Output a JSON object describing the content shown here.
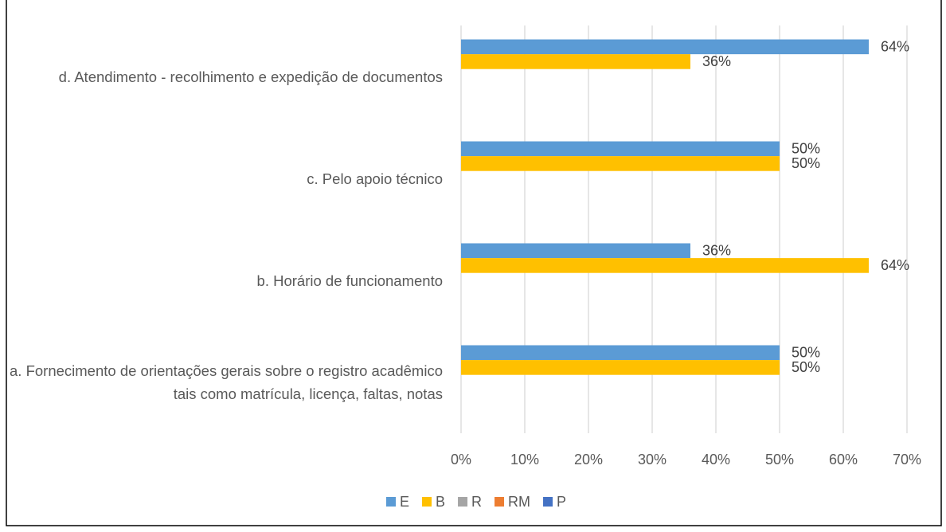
{
  "chart_data": {
    "type": "bar",
    "orientation": "horizontal",
    "categories": [
      "a. Fornecimento de orientações gerais sobre o registro acadêmico tais como matrícula, licença, faltas, notas",
      "b. Horário de funcionamento",
      "c. Pelo apoio técnico",
      "d. Atendimento - recolhimento e expedição de documentos"
    ],
    "series": [
      {
        "name": "E",
        "color": "#5b9bd5",
        "values": [
          50,
          36,
          50,
          64
        ],
        "value_labels": [
          "50%",
          "36%",
          "50%",
          "64%"
        ]
      },
      {
        "name": "B",
        "color": "#ffc000",
        "values": [
          50,
          64,
          50,
          36
        ],
        "value_labels": [
          "50%",
          "64%",
          "50%",
          "36%"
        ]
      },
      {
        "name": "R",
        "color": "#a5a5a5",
        "values": [
          null,
          null,
          null,
          null
        ]
      },
      {
        "name": "RM",
        "color": "#ed7d31",
        "values": [
          null,
          null,
          null,
          null
        ]
      },
      {
        "name": "P",
        "color": "#4472c4",
        "values": [
          null,
          null,
          null,
          null
        ]
      }
    ],
    "xlim": [
      0,
      70
    ],
    "xticks": [
      {
        "value": 0,
        "label": "0%"
      },
      {
        "value": 10,
        "label": "10%"
      },
      {
        "value": 20,
        "label": "20%"
      },
      {
        "value": 30,
        "label": "30%"
      },
      {
        "value": 40,
        "label": "40%"
      },
      {
        "value": 50,
        "label": "50%"
      },
      {
        "value": 60,
        "label": "60%"
      },
      {
        "value": 70,
        "label": "70%"
      }
    ],
    "grid": true,
    "legend": "bottom"
  }
}
